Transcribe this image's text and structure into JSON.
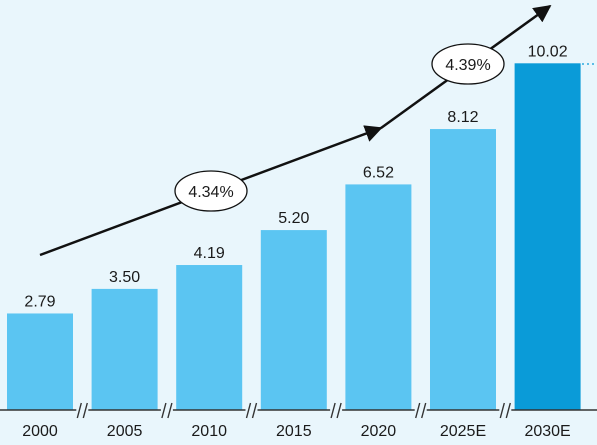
{
  "chart_data": {
    "type": "bar",
    "categories": [
      "2000",
      "2005",
      "2010",
      "2015",
      "2020",
      "2025E",
      "2030E"
    ],
    "values": [
      2.79,
      3.5,
      4.19,
      5.2,
      6.52,
      8.12,
      10.02
    ],
    "value_labels": [
      "2.79",
      "3.50",
      "4.19",
      "5.20",
      "6.52",
      "8.12",
      "10.02"
    ],
    "annotations": [
      {
        "text": "4.34%",
        "from_category": "2000",
        "to_category": "2020"
      },
      {
        "text": "4.39%",
        "from_category": "2020",
        "to_category": "2030E"
      }
    ],
    "title": "",
    "xlabel": "",
    "ylabel": "",
    "ylim": [
      0,
      11
    ],
    "grid": false,
    "legend": "none",
    "axis_breaks": true
  },
  "colors": {
    "background": "#e9f6fc",
    "bar": "#5bc5f2",
    "bar_highlight": "#0a9bd8",
    "arrow": "#111111",
    "axis": "#333333",
    "dotted_guide": "#0a9bd8"
  }
}
